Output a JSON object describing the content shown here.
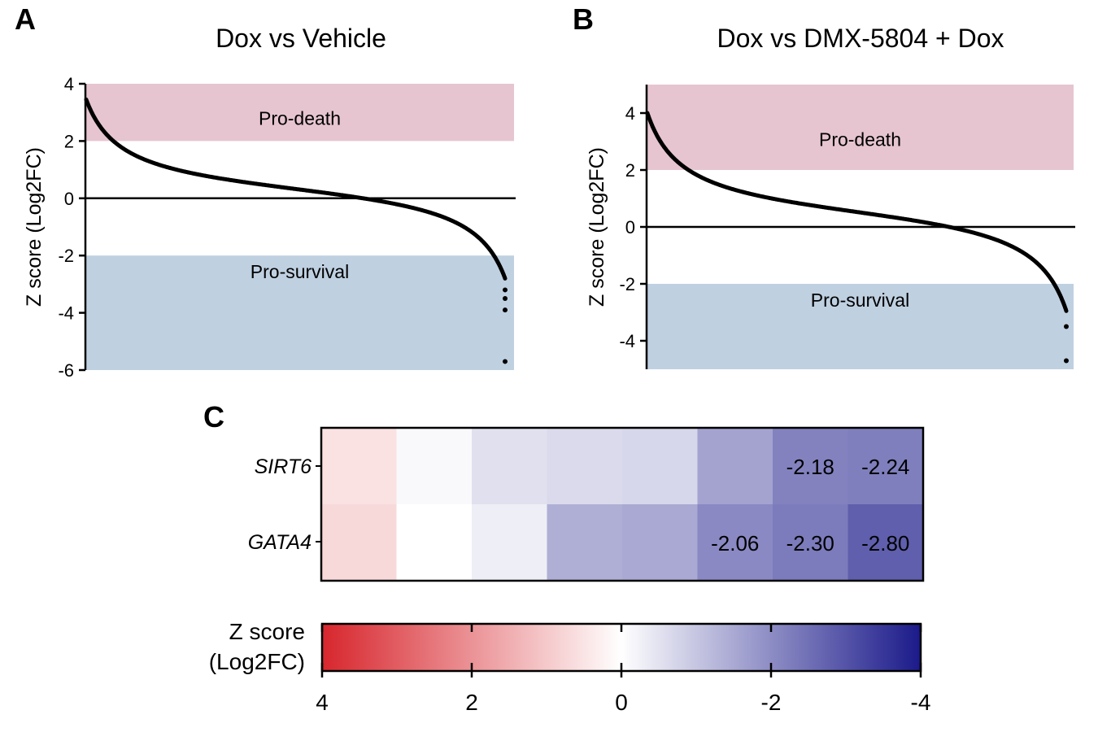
{
  "panel_labels": {
    "a": "A",
    "b": "B",
    "c": "C"
  },
  "chart_data": [
    {
      "id": "A",
      "type": "scatter",
      "title": "Dox vs Vehicle",
      "ylabel": "Z score (Log2FC)",
      "xlabel": "",
      "ylim": [
        -6,
        4
      ],
      "yticks": [
        4,
        2,
        0,
        -2,
        -4,
        -6
      ],
      "ytick_labels": [
        "4",
        "2",
        "0",
        "-2",
        "-4",
        "-6"
      ],
      "bands": [
        {
          "label": "Pro-death",
          "from": 2,
          "to": 4,
          "color": "#e6c5d0"
        },
        {
          "label": "Pro-survival",
          "from": -6,
          "to": -2,
          "color": "#bfd0e1"
        }
      ],
      "reference_line": 0,
      "curve": {
        "n": 800,
        "start": 3.45,
        "end": -2.8,
        "outliers_tail": [
          -3.2,
          -3.5,
          -3.9,
          -5.7
        ]
      }
    },
    {
      "id": "B",
      "type": "scatter",
      "title": "Dox vs DMX-5804 + Dox",
      "ylabel": "Z score (Log2FC)",
      "xlabel": "",
      "ylim": [
        -5,
        5
      ],
      "yticks": [
        4,
        2,
        0,
        -2,
        -4
      ],
      "ytick_labels": [
        "4",
        "2",
        "0",
        "-2",
        "-4"
      ],
      "bands": [
        {
          "label": "Pro-death",
          "from": 2,
          "to": 5,
          "color": "#e6c5d0"
        },
        {
          "label": "Pro-survival",
          "from": -5,
          "to": -2,
          "color": "#bfd0e1"
        }
      ],
      "reference_line": 0,
      "curve": {
        "n": 800,
        "start": 4.0,
        "end": -2.95,
        "outliers_tail": [
          -3.5,
          -4.7
        ]
      }
    },
    {
      "id": "C",
      "type": "heatmap",
      "rows": [
        "SIRT6",
        "GATA4"
      ],
      "columns": 8,
      "values": [
        [
          0.55,
          -0.1,
          -0.55,
          -0.65,
          -0.7,
          -1.6,
          -2.18,
          -2.24
        ],
        [
          0.7,
          0.0,
          -0.3,
          -1.4,
          -1.5,
          -2.06,
          -2.3,
          -2.8
        ]
      ],
      "cell_labels": [
        [
          "",
          "",
          "",
          "",
          "",
          "",
          "-2.18",
          "-2.24"
        ],
        [
          "",
          "",
          "",
          "",
          "",
          "-2.06",
          "-2.30",
          "-2.80"
        ]
      ],
      "colorbar": {
        "label_line1": "Z score",
        "label_line2": "(Log2FC)",
        "range": [
          4,
          -4
        ],
        "ticks": [
          4,
          2,
          0,
          -2,
          -4
        ],
        "tick_labels": [
          "4",
          "2",
          "0",
          "-2",
          "-4"
        ],
        "color_high": "#d7262d",
        "color_mid": "#ffffff",
        "color_low": "#1b1a8a"
      }
    }
  ]
}
